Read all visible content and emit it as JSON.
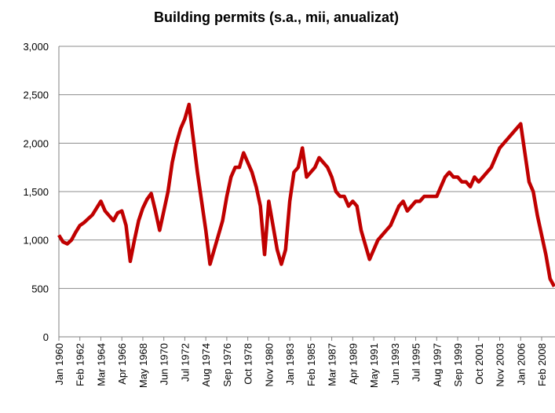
{
  "chart_data": {
    "type": "line",
    "title": "Building permits (s.a., mii, anualizat)",
    "categories": [
      "Jan 1960",
      null,
      null,
      null,
      null,
      "Feb 1962",
      null,
      null,
      null,
      null,
      "Mar 1964",
      null,
      null,
      null,
      null,
      "Apr 1966",
      null,
      null,
      null,
      null,
      "May 1968",
      null,
      null,
      null,
      null,
      "Jun 1970",
      null,
      null,
      null,
      null,
      "Jul 1972",
      null,
      null,
      null,
      null,
      "Aug 1974",
      null,
      null,
      null,
      null,
      "Sep 1976",
      null,
      null,
      null,
      null,
      "Oct 1978",
      null,
      null,
      null,
      null,
      "Nov 1980",
      null,
      null,
      null,
      null,
      "Jan 1983",
      null,
      null,
      null,
      null,
      "Feb 1985",
      null,
      null,
      null,
      null,
      "Mar 1987",
      null,
      null,
      null,
      null,
      "Apr 1989",
      null,
      null,
      null,
      null,
      "May 1991",
      null,
      null,
      null,
      null,
      "Jun 1993",
      null,
      null,
      null,
      null,
      "Jul 1995",
      null,
      null,
      null,
      null,
      "Aug 1997",
      null,
      null,
      null,
      null,
      "Sep 1999",
      null,
      null,
      null,
      null,
      "Oct 2001",
      null,
      null,
      null,
      null,
      "Nov 2003",
      null,
      null,
      null,
      null,
      "Jan 2006",
      null,
      null,
      null,
      null,
      "Feb 2008",
      null,
      null,
      null
    ],
    "series": [
      {
        "color": "#c00000",
        "values": [
          1050,
          980,
          960,
          1000,
          1080,
          1150,
          1180,
          1220,
          1260,
          1330,
          1400,
          1300,
          1250,
          1200,
          1280,
          1300,
          1150,
          780,
          1000,
          1200,
          1330,
          1420,
          1480,
          1300,
          1100,
          1300,
          1500,
          1800,
          2000,
          2150,
          2250,
          2400,
          2050,
          1700,
          1400,
          1100,
          750,
          900,
          1050,
          1200,
          1450,
          1650,
          1750,
          1750,
          1900,
          1800,
          1700,
          1550,
          1350,
          850,
          1400,
          1150,
          900,
          750,
          900,
          1400,
          1700,
          1750,
          1950,
          1650,
          1700,
          1750,
          1850,
          1800,
          1750,
          1650,
          1500,
          1450,
          1450,
          1350,
          1400,
          1350,
          1100,
          950,
          800,
          900,
          1000,
          1050,
          1100,
          1150,
          1250,
          1350,
          1400,
          1300,
          1350,
          1400,
          1400,
          1450,
          1450,
          1450,
          1450,
          1550,
          1650,
          1700,
          1650,
          1650,
          1600,
          1600,
          1550,
          1650,
          1600,
          1650,
          1700,
          1750,
          1850,
          1950,
          2000,
          2050,
          2100,
          2150,
          2200,
          1900,
          1600,
          1500,
          1250,
          1050,
          850,
          600,
          520
        ]
      }
    ],
    "ylim": [
      0,
      3000
    ],
    "yticks": [
      0,
      500,
      {
        "value": 1000,
        "label": "1,000"
      },
      {
        "value": 1500,
        "label": "1,500"
      },
      {
        "value": 2000,
        "label": "2,000"
      },
      {
        "value": 2500,
        "label": "2,500"
      },
      {
        "value": 3000,
        "label": "3,000"
      }
    ],
    "grid": true
  }
}
